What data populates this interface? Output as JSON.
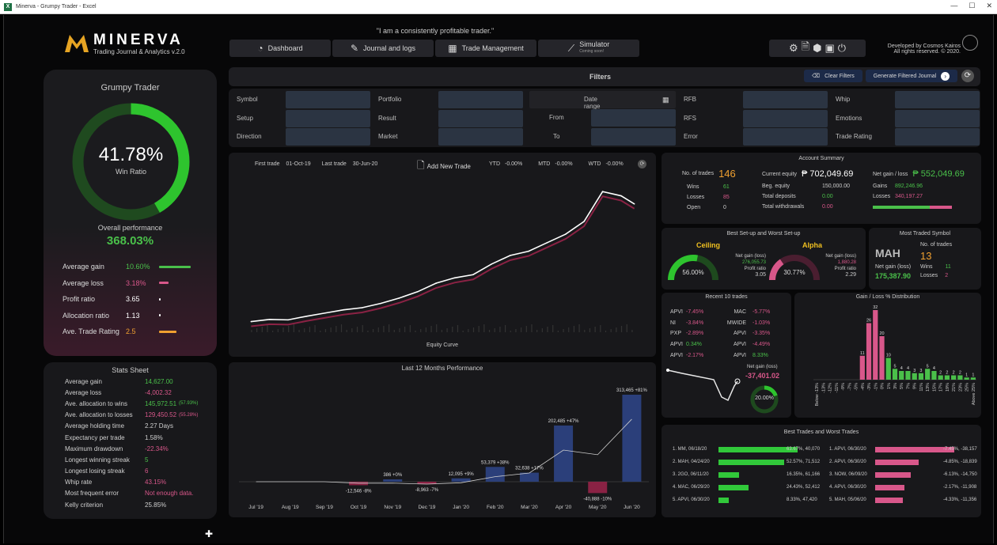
{
  "window": {
    "title": "Minerva - Grumpy Trader - Excel"
  },
  "brand": {
    "name": "MINERVA",
    "tagline": "Trading Journal & Analytics v.2.0"
  },
  "quote": "\"I am a consistently profitable trader.\"",
  "nav": [
    {
      "label": "Dashboard",
      "icon": "speedometer-icon"
    },
    {
      "label": "Journal and logs",
      "icon": "edit-icon"
    },
    {
      "label": "Trade Management",
      "icon": "grid-icon"
    },
    {
      "label": "Simulator",
      "sub": "Coming soon!",
      "icon": "chart-line-icon"
    }
  ],
  "developer": {
    "line1": "Developed by Cosmos Kairos",
    "line2": "All rights reserved.  © 2020."
  },
  "profile": {
    "name": "Grumpy Trader",
    "win_ratio": "41.78%",
    "win_ratio_label": "Win Ratio",
    "win_ratio_value": 41.78,
    "overall_label": "Overall performance",
    "overall_value": "368.03%",
    "stats": [
      {
        "label": "Average gain",
        "value": "10.60%",
        "color": "#4ac04a",
        "bar": 1.0
      },
      {
        "label": "Average loss",
        "value": "3.18%",
        "color": "#d8578a",
        "bar": 0.3
      },
      {
        "label": "Profit ratio",
        "value": "3.65",
        "color": "#ffffff",
        "bar": 0
      },
      {
        "label": "Allocation ratio",
        "value": "1.13",
        "color": "#ffffff",
        "bar": 0
      },
      {
        "label": "Ave. Trade Rating",
        "value": "2.5",
        "color": "#f0a030",
        "bar": 0.55
      }
    ]
  },
  "stats_sheet": {
    "title": "Stats Sheet",
    "rows": [
      {
        "label": "Average gain",
        "value": "14,627.00",
        "extra": "",
        "color": "#4ac04a"
      },
      {
        "label": "Average loss",
        "value": "-4,002.32",
        "extra": "",
        "color": "#d8578a"
      },
      {
        "label": "Ave. allocation to wins",
        "value": "145,972.51",
        "extra": "(57.93%)",
        "color": "#4ac04a"
      },
      {
        "label": "Ave. allocation to losses",
        "value": "129,450.52",
        "extra": "(55.28%)",
        "color": "#d8578a"
      },
      {
        "label": "Average holding time",
        "value": "2.27 Days",
        "extra": "",
        "color": "#d0d0d0"
      },
      {
        "label": "Expectancy per trade",
        "value": "1.58%",
        "extra": "",
        "color": "#d0d0d0"
      },
      {
        "label": "Maximum drawdown",
        "value": "-22.34%",
        "extra": "",
        "color": "#d8578a"
      },
      {
        "label": "Longest winning streak",
        "value": "5",
        "extra": "",
        "color": "#4ac04a"
      },
      {
        "label": "Longest losing streak",
        "value": "6",
        "extra": "",
        "color": "#d8578a"
      },
      {
        "label": "Whip rate",
        "value": "43.15%",
        "extra": "",
        "color": "#d8578a"
      },
      {
        "label": "Most frequent error",
        "value": "Not enough data.",
        "extra": "",
        "color": "#d8578a"
      },
      {
        "label": "Kelly criterion",
        "value": "25.85%",
        "extra": "",
        "color": "#d0d0d0"
      }
    ]
  },
  "filters": {
    "title": "Filters",
    "clear": "Clear Filters",
    "generate": "Generate Filtered Journal",
    "col1": [
      "Symbol",
      "Setup",
      "Direction"
    ],
    "col2": [
      "Portfolio",
      "Result",
      "Market"
    ],
    "date_range": "Date range",
    "from": "From",
    "to": "To",
    "col4": [
      "RFB",
      "RFS",
      "Error"
    ],
    "col5": [
      "Whip",
      "Emotions",
      "Trade Rating"
    ]
  },
  "equity": {
    "first_trade_label": "First trade",
    "first_trade": "01-Oct-19",
    "last_trade_label": "Last trade",
    "last_trade": "30-Jun-20",
    "add_new": "Add New Trade",
    "ytd_label": "YTD",
    "ytd": "-0.00%",
    "mtd_label": "MTD",
    "mtd": "-0.00%",
    "wtd_label": "WTD",
    "wtd": "-0.00%",
    "caption": "Equity Curve"
  },
  "account": {
    "title": "Account Summary",
    "trades_label": "No. of trades",
    "trades": "146",
    "wins_label": "Wins",
    "wins": "61",
    "losses_label": "Losses",
    "losses": "85",
    "open_label": "Open",
    "open": "0",
    "equity_label": "Current equity",
    "equity": "₱ 702,049.69",
    "beg_label": "Beg. equity",
    "beg": "150,000.00",
    "dep_label": "Total deposits",
    "dep": "0.00",
    "wd_label": "Total withdrawals",
    "wd": "0.00",
    "net_label": "Net gain / loss",
    "net": "₱ 552,049.69",
    "gains_label": "Gains",
    "gains": "892,246.96",
    "losses2_label": "Losses",
    "losses2": "340,197.27"
  },
  "setups": {
    "title": "Best Set-up and Worst Set-up",
    "best": {
      "name": "Ceiling",
      "pct": "56.00%",
      "pct_value": 56,
      "ng_label": "Net gain (loss)",
      "ng": "276,055.73",
      "pr_label": "Profit ratio",
      "pr": "3.05"
    },
    "worst": {
      "name": "Alpha",
      "pct": "30.77%",
      "pct_value": 30.77,
      "ng_label": "Net gain (loss)",
      "ng": "1,880.28",
      "pr_label": "Profit ratio",
      "pr": "2.29"
    }
  },
  "most_traded": {
    "title": "Most Traded Symbol",
    "symbol": "MAH",
    "trades_label": "No. of trades",
    "trades": "13",
    "ng_label": "Net gain (loss)",
    "ng": "175,387.90",
    "wins_label": "Wins",
    "wins": "11",
    "losses_label": "Losses",
    "losses": "2"
  },
  "recent": {
    "title": "Recent 10 trades",
    "left": [
      {
        "sym": "APVI",
        "val": "-7.45%",
        "color": "#d8578a"
      },
      {
        "sym": "NI",
        "val": "-3.84%",
        "color": "#d8578a"
      },
      {
        "sym": "PXP",
        "val": "-2.89%",
        "color": "#d8578a"
      },
      {
        "sym": "APVI",
        "val": "0.34%",
        "color": "#4ac04a"
      },
      {
        "sym": "APVI",
        "val": "-2.17%",
        "color": "#d8578a"
      }
    ],
    "right": [
      {
        "sym": "MAC",
        "val": "-5.77%",
        "color": "#d8578a"
      },
      {
        "sym": "MWIDE",
        "val": "-1.03%",
        "color": "#d8578a"
      },
      {
        "sym": "APVI",
        "val": "-3.35%",
        "color": "#d8578a"
      },
      {
        "sym": "APVI",
        "val": "-4.49%",
        "color": "#d8578a"
      },
      {
        "sym": "APVI",
        "val": "8.33%",
        "color": "#4ac04a"
      }
    ],
    "ng_label": "Net gain (loss)",
    "ng": "-37,401.02",
    "pct": "20.00%",
    "pct_value": 20
  },
  "distribution": {
    "title": "Gain / Loss % Distribution",
    "bars": [
      {
        "cat": "Below -13%",
        "value": 0,
        "color": "#d8578a"
      },
      {
        "cat": "-13%",
        "value": 0,
        "color": "#d8578a"
      },
      {
        "cat": "-12%",
        "value": 0,
        "color": "#d8578a"
      },
      {
        "cat": "-11%",
        "value": 0,
        "color": "#d8578a"
      },
      {
        "cat": "-9%",
        "value": 0,
        "color": "#d8578a"
      },
      {
        "cat": "-7%",
        "value": 0,
        "color": "#d8578a"
      },
      {
        "cat": "-5%",
        "value": 0,
        "color": "#d8578a"
      },
      {
        "cat": "-4%",
        "value": 11,
        "color": "#d8578a"
      },
      {
        "cat": "-3%",
        "value": 26,
        "color": "#d8578a"
      },
      {
        "cat": "-1%",
        "value": 32,
        "color": "#d8578a"
      },
      {
        "cat": "0%",
        "value": 20,
        "color": "#d8578a"
      },
      {
        "cat": "1%",
        "value": 10,
        "color": "#4ac04a"
      },
      {
        "cat": "3%",
        "value": 5,
        "color": "#4ac04a"
      },
      {
        "cat": "5%",
        "value": 4,
        "color": "#4ac04a"
      },
      {
        "cat": "7%",
        "value": 4,
        "color": "#4ac04a"
      },
      {
        "cat": "9%",
        "value": 3,
        "color": "#4ac04a"
      },
      {
        "cat": "11%",
        "value": 3,
        "color": "#4ac04a"
      },
      {
        "cat": "13%",
        "value": 5,
        "color": "#4ac04a"
      },
      {
        "cat": "15%",
        "value": 4,
        "color": "#4ac04a"
      },
      {
        "cat": "17%",
        "value": 2,
        "color": "#4ac04a"
      },
      {
        "cat": "19%",
        "value": 2,
        "color": "#4ac04a"
      },
      {
        "cat": "21%",
        "value": 2,
        "color": "#4ac04a"
      },
      {
        "cat": "23%",
        "value": 2,
        "color": "#4ac04a"
      },
      {
        "cat": "25%",
        "value": 1,
        "color": "#4ac04a"
      },
      {
        "cat": "Above 25%",
        "value": 1,
        "color": "#4ac04a"
      }
    ]
  },
  "best_worst": {
    "title": "Best Trades and Worst Trades",
    "best": [
      {
        "label": "1. MM, 06/18/20",
        "val": "63.67%, 40,070",
        "bar": 1.0
      },
      {
        "label": "2. MAH, 04/24/20",
        "val": "52.57%, 71,512",
        "bar": 0.83
      },
      {
        "label": "3. 2GO, 06/11/20",
        "val": "16.35%, 61,166",
        "bar": 0.26
      },
      {
        "label": "4. MAC, 06/29/20",
        "val": "24.43%, 52,412",
        "bar": 0.38
      },
      {
        "label": "5. APVI, 06/30/20",
        "val": "8.33%, 47,420",
        "bar": 0.13
      }
    ],
    "worst": [
      {
        "label": "1. APVI, 06/30/20",
        "val": "-7.45%, -38,157",
        "bar": 1.0
      },
      {
        "label": "2. APVI, 06/30/20",
        "val": "-4.85%, -18,839",
        "bar": 0.55
      },
      {
        "label": "3. NOW, 06/09/20",
        "val": "-6.13%, -14,750",
        "bar": 0.45
      },
      {
        "label": "4. APVI, 06/30/20",
        "val": "-2.17%, -11,908",
        "bar": 0.37
      },
      {
        "label": "5. MAH, 05/06/20",
        "val": "-4.33%, -11,356",
        "bar": 0.35
      }
    ]
  },
  "chart_data": [
    {
      "type": "line",
      "title": "Equity Curve",
      "x": [
        1,
        8,
        15,
        22,
        29,
        36,
        43,
        50,
        57,
        64,
        71,
        78,
        85,
        92,
        99,
        106,
        113,
        120,
        127,
        134,
        141,
        146
      ],
      "y": [
        150000,
        160000,
        158000,
        175000,
        190000,
        205000,
        215000,
        235000,
        260000,
        290000,
        330000,
        355000,
        370000,
        420000,
        460000,
        480000,
        520000,
        560000,
        620000,
        760000,
        740000,
        702049
      ]
    },
    {
      "type": "bar",
      "title": "Last 12 Months Performance",
      "categories": [
        "Jul '19",
        "Aug '19",
        "Sep '19",
        "Oct '19",
        "Nov '19",
        "Dec '19",
        "Jan '20",
        "Feb '20",
        "Mar '20",
        "Apr '20",
        "May '20",
        "Jun '20"
      ],
      "values": [
        0,
        0,
        0,
        -12546,
        386,
        -8963,
        12095,
        53379,
        32638,
        202485,
        -40888,
        313465
      ],
      "labels": [
        "",
        "",
        "",
        "-12,546 -8%",
        "386 +0%",
        "-8,963 -7%",
        "12,095 +9%",
        "53,379 +38%",
        "32,638 +17%",
        "202,485 +47%",
        "-40,888 -10%",
        "313,465 +81%"
      ]
    }
  ],
  "colors": {
    "accent": "#4ac04a",
    "loss": "#d8578a",
    "gold": "#f0a030",
    "bg": "#070708",
    "panel": "#18181b"
  }
}
